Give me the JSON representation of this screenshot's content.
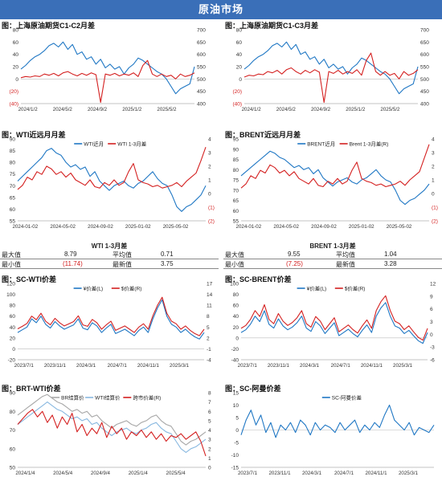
{
  "page": {
    "banner": "原油市场"
  },
  "chart_data": [
    {
      "id": "p1",
      "type": "line",
      "title": "图：上海原油期货C1-C2月差",
      "x_ticks": [
        "2024/1/2",
        "2024/5/2",
        "2024/9/2",
        "2025/1/2",
        "2025/5/2"
      ],
      "y_left_ticks": [
        "80",
        "60",
        "40",
        "20",
        "0",
        "(20)",
        "(40)"
      ],
      "y_left_range": [
        -40,
        80
      ],
      "y_right_ticks": [
        "700",
        "650",
        "600",
        "550",
        "500",
        "450",
        "400"
      ],
      "y_right_range": [
        400,
        700
      ],
      "series": [
        {
          "axis": "right",
          "color": "#1f77c4",
          "values": [
            540,
            555,
            575,
            590,
            600,
            615,
            635,
            645,
            630,
            650,
            620,
            640,
            600,
            610,
            580,
            590,
            560,
            580,
            545,
            560,
            540,
            550,
            520,
            545,
            560,
            585,
            575,
            560,
            545,
            530,
            520,
            500,
            470,
            440,
            460,
            470,
            480,
            550
          ]
        },
        {
          "axis": "left",
          "color": "#d42020",
          "values": [
            2,
            4,
            3,
            5,
            4,
            8,
            6,
            9,
            5,
            10,
            12,
            8,
            5,
            9,
            6,
            10,
            7,
            -38,
            8,
            6,
            9,
            5,
            8,
            6,
            10,
            4,
            22,
            30,
            8,
            4,
            8,
            4,
            6,
            0,
            8,
            4,
            6,
            10
          ]
        }
      ]
    },
    {
      "id": "p2",
      "type": "line",
      "title": "图：上海原油期货C1-C3月差",
      "x_ticks": [
        "2024/1/2",
        "2024/5/2",
        "2024/9/2",
        "2025/1/2",
        "2025/5/2"
      ],
      "y_left_ticks": [
        "80",
        "60",
        "40",
        "20",
        "0",
        "(20)",
        "(40)"
      ],
      "y_left_range": [
        -40,
        80
      ],
      "y_right_ticks": [
        "700",
        "650",
        "600",
        "550",
        "500",
        "450",
        "400"
      ],
      "y_right_range": [
        400,
        700
      ],
      "series": [
        {
          "axis": "right",
          "color": "#1f77c4",
          "values": [
            540,
            555,
            575,
            590,
            600,
            615,
            635,
            645,
            630,
            650,
            620,
            640,
            600,
            610,
            580,
            590,
            560,
            580,
            545,
            560,
            540,
            550,
            520,
            545,
            560,
            585,
            575,
            560,
            545,
            530,
            520,
            500,
            470,
            440,
            460,
            470,
            480,
            550
          ]
        },
        {
          "axis": "left",
          "color": "#d42020",
          "values": [
            3,
            6,
            5,
            8,
            7,
            12,
            10,
            14,
            8,
            15,
            18,
            12,
            8,
            14,
            10,
            15,
            11,
            -38,
            12,
            9,
            14,
            8,
            12,
            9,
            15,
            6,
            30,
            42,
            12,
            6,
            12,
            6,
            9,
            0,
            12,
            6,
            9,
            15
          ]
        }
      ]
    },
    {
      "id": "p3",
      "type": "line",
      "title": "图：WTI近远月月差",
      "x_ticks": [
        "2024-01-02",
        "2024-05-02",
        "2024-09-02",
        "2025-01-02",
        "2025-05-02"
      ],
      "y_left_ticks": [
        "90",
        "85",
        "80",
        "75",
        "70",
        "65",
        "60",
        "55"
      ],
      "y_left_range": [
        55,
        90
      ],
      "y_right_ticks": [
        "4",
        "3",
        "2",
        "1",
        "0",
        "(1)",
        "(2)"
      ],
      "y_right_range": [
        -2,
        4
      ],
      "legend": [
        "WTI近月",
        "WTI 1-3月差"
      ],
      "series": [
        {
          "name": "WTI近月",
          "axis": "left",
          "color": "#1f77c4",
          "values": [
            72,
            74,
            76,
            78,
            80,
            82,
            85,
            86,
            84,
            83,
            80,
            78,
            79,
            77,
            78,
            74,
            76,
            72,
            70,
            68,
            70,
            71,
            72,
            70,
            69,
            71,
            72,
            74,
            76,
            73,
            71,
            70,
            66,
            61,
            59,
            61,
            62,
            64,
            66,
            70
          ]
        },
        {
          "name": "WTI 1-3月差",
          "axis": "right",
          "color": "#d42020",
          "values": [
            0.3,
            0.6,
            1.2,
            1.0,
            1.6,
            1.4,
            2.0,
            1.8,
            1.4,
            1.6,
            1.2,
            1.5,
            1.0,
            0.8,
            0.6,
            1.0,
            0.5,
            0.4,
            0.8,
            0.6,
            1.0,
            0.6,
            0.8,
            1.6,
            2.2,
            1.0,
            0.8,
            0.7,
            0.5,
            0.6,
            0.4,
            0.5,
            0.6,
            0.8,
            0.5,
            0.9,
            1.2,
            1.5,
            2.4,
            3.4
          ]
        }
      ]
    },
    {
      "id": "p4",
      "type": "line",
      "title": "图：BRENT近远月月差",
      "x_ticks": [
        "2024-01-02",
        "2024-05-02",
        "2024-09-02",
        "2025-01-02",
        "2025-05-02"
      ],
      "y_left_ticks": [
        "95",
        "90",
        "85",
        "80",
        "75",
        "70",
        "65",
        "60",
        "55"
      ],
      "y_left_range": [
        55,
        95
      ],
      "y_right_ticks": [
        "4",
        "3",
        "2",
        "1",
        "0",
        "(1)",
        "(2)"
      ],
      "y_right_range": [
        -2,
        4
      ],
      "legend": [
        "BRENT近月",
        "Brent 1-3月差(R)"
      ],
      "series": [
        {
          "name": "BRENT近月",
          "axis": "left",
          "color": "#1f77c4",
          "values": [
            77,
            79,
            81,
            83,
            85,
            87,
            89,
            88,
            86,
            85,
            83,
            81,
            82,
            80,
            81,
            78,
            80,
            76,
            74,
            72,
            74,
            75,
            76,
            74,
            73,
            75,
            76,
            78,
            80,
            77,
            75,
            74,
            70,
            65,
            63,
            65,
            66,
            68,
            70,
            73
          ]
        },
        {
          "name": "Brent 1-3月差(R)",
          "axis": "right",
          "color": "#d42020",
          "values": [
            0.4,
            0.7,
            1.3,
            1.1,
            1.7,
            1.5,
            2.1,
            1.9,
            1.5,
            1.7,
            1.3,
            1.6,
            1.1,
            0.9,
            0.7,
            1.1,
            0.6,
            0.5,
            0.9,
            0.7,
            1.1,
            0.7,
            0.9,
            1.7,
            2.3,
            1.1,
            0.9,
            0.8,
            0.6,
            0.7,
            0.5,
            0.6,
            0.7,
            0.9,
            0.6,
            1.0,
            1.3,
            1.6,
            2.6,
            3.6
          ]
        }
      ]
    },
    {
      "id": "p5",
      "type": "line",
      "title": "图：SC-WTI价差",
      "x_ticks": [
        "2023/7/1",
        "2023/11/1",
        "2024/3/1",
        "2024/7/1",
        "2024/11/1",
        "2025/3/1"
      ],
      "y_left_ticks": [
        "120",
        "100",
        "80",
        "60",
        "40",
        "20",
        "0",
        "-20"
      ],
      "y_left_range": [
        -20,
        120
      ],
      "y_right_ticks": [
        "17",
        "14",
        "11",
        "8",
        "5",
        "2",
        "-1",
        "-4"
      ],
      "y_right_range": [
        -4,
        17
      ],
      "legend": [
        "¥价差(L)",
        "$价差(R)"
      ],
      "series": [
        {
          "name": "¥价差(L)",
          "axis": "left",
          "color": "#1f77c4",
          "values": [
            30,
            35,
            40,
            55,
            48,
            60,
            45,
            38,
            50,
            42,
            36,
            40,
            44,
            55,
            38,
            35,
            48,
            42,
            30,
            38,
            45,
            28,
            32,
            36,
            30,
            24,
            34,
            40,
            30,
            55,
            75,
            90,
            60,
            45,
            40,
            30,
            36,
            28,
            22,
            18,
            30
          ]
        },
        {
          "name": "$价差(R)",
          "axis": "right",
          "color": "#d42020",
          "values": [
            4.5,
            5.2,
            6.0,
            8.0,
            7.0,
            8.8,
            6.6,
            5.6,
            7.4,
            6.2,
            5.3,
            5.9,
            6.5,
            8.1,
            5.6,
            5.2,
            7.1,
            6.2,
            4.4,
            5.6,
            6.6,
            4.1,
            4.7,
            5.3,
            4.4,
            3.5,
            5.0,
            5.9,
            4.4,
            8.1,
            11.0,
            13.2,
            8.8,
            6.6,
            5.9,
            4.4,
            5.3,
            4.1,
            3.2,
            2.6,
            4.4
          ]
        }
      ]
    },
    {
      "id": "p6",
      "type": "line",
      "title": "图：SC-BRENT价差",
      "x_ticks": [
        "2023/7/1",
        "2023/11/1",
        "2024/3/1",
        "2024/7/1",
        "2024/11/1",
        "2025/3/1"
      ],
      "y_left_ticks": [
        "100",
        "80",
        "60",
        "40",
        "20",
        "0",
        "-20",
        "-40"
      ],
      "y_left_range": [
        -40,
        100
      ],
      "y_right_ticks": [
        "12",
        "9",
        "6",
        "3",
        "0",
        "-3",
        "-6"
      ],
      "y_right_range": [
        -6,
        12
      ],
      "legend": [
        "¥价差(L)",
        "$价差(R)"
      ],
      "series": [
        {
          "name": "¥价差(L)",
          "axis": "left",
          "color": "#1f77c4",
          "values": [
            10,
            15,
            25,
            40,
            30,
            50,
            25,
            18,
            35,
            22,
            15,
            20,
            28,
            40,
            18,
            12,
            30,
            22,
            8,
            18,
            28,
            4,
            10,
            16,
            8,
            2,
            14,
            24,
            10,
            40,
            55,
            65,
            40,
            22,
            18,
            8,
            14,
            4,
            -5,
            -10,
            10
          ]
        },
        {
          "name": "$价差(R)",
          "axis": "right",
          "color": "#d42020",
          "values": [
            1.4,
            2.1,
            3.5,
            5.6,
            4.2,
            7.0,
            3.5,
            2.5,
            4.9,
            3.1,
            2.1,
            2.8,
            3.9,
            5.6,
            2.5,
            1.7,
            4.2,
            3.1,
            1.1,
            2.5,
            3.9,
            0.6,
            1.4,
            2.2,
            1.1,
            0.3,
            2.0,
            3.4,
            1.4,
            5.6,
            7.7,
            9.1,
            5.6,
            3.1,
            2.5,
            1.1,
            2.0,
            0.6,
            -0.7,
            -1.4,
            1.4
          ]
        }
      ]
    },
    {
      "id": "p7",
      "type": "line",
      "title": "图：BRT-WTI价差",
      "x_ticks": [
        "2024/1/4",
        "2024/5/4",
        "2024/9/4",
        "2025/1/4",
        "2025/5/4"
      ],
      "y_left_ticks": [
        "90",
        "80",
        "70",
        "60",
        "50"
      ],
      "y_left_range": [
        50,
        90
      ],
      "y_right_ticks": [
        "8",
        "7",
        "6",
        "5",
        "4",
        "3",
        "2",
        "1",
        "0"
      ],
      "y_right_range": [
        0,
        8
      ],
      "legend": [
        "BR结算价",
        "WTI结算价",
        "跨市价差(R)"
      ],
      "series": [
        {
          "name": "BR结算价",
          "axis": "left",
          "color": "#a8a8a8",
          "values": [
            78,
            80,
            82,
            84,
            86,
            88,
            89,
            87,
            85,
            84,
            82,
            80,
            81,
            79,
            80,
            77,
            78,
            75,
            73,
            71,
            73,
            74,
            75,
            73,
            72,
            74,
            75,
            77,
            78,
            75,
            73,
            72,
            68,
            64,
            62,
            64,
            65,
            67,
            69
          ]
        },
        {
          "name": "WTI结算价",
          "axis": "left",
          "color": "#88b8e0",
          "values": [
            73,
            75,
            77,
            79,
            81,
            83,
            85,
            83,
            81,
            80,
            78,
            76,
            77,
            75,
            76,
            73,
            74,
            71,
            69,
            67,
            69,
            70,
            71,
            69,
            68,
            70,
            71,
            73,
            74,
            71,
            69,
            68,
            64,
            60,
            58,
            60,
            61,
            63,
            65
          ]
        },
        {
          "name": "跨市价差(R)",
          "axis": "right",
          "color": "#d42020",
          "values": [
            4.6,
            5.2,
            5.8,
            6.2,
            5.4,
            6.0,
            4.8,
            5.6,
            4.2,
            5.4,
            4.6,
            5.8,
            3.8,
            4.6,
            3.4,
            4.2,
            3.6,
            4.8,
            3.2,
            4.4,
            3.6,
            4.2,
            3.0,
            3.8,
            3.4,
            4.0,
            3.2,
            3.8,
            3.0,
            3.6,
            2.8,
            3.4,
            3.2,
            3.6,
            3.0,
            3.4,
            3.8,
            2.8,
            1.2
          ]
        }
      ]
    },
    {
      "id": "p8",
      "type": "line",
      "title": "图：SC-阿曼价差",
      "x_ticks": [
        "2023/7/1",
        "2023/11/1",
        "2024/3/1",
        "2024/7/1",
        "2024/11/1",
        "2025/3/1"
      ],
      "y_left_ticks": [
        "15",
        "10",
        "5",
        "0",
        "-5",
        "-10",
        "-15"
      ],
      "y_left_range": [
        -15,
        15
      ],
      "legend": [
        "SC-阿曼价差"
      ],
      "series": [
        {
          "name": "SC-阿曼价差",
          "axis": "left",
          "color": "#1f77c4",
          "values": [
            -2,
            4,
            8,
            2,
            6,
            -1,
            3,
            -3,
            2,
            0,
            3,
            -1,
            4,
            2,
            -2,
            3,
            0,
            2,
            1,
            -1,
            3,
            0,
            2,
            4,
            -1,
            2,
            0,
            3,
            1,
            6,
            10,
            4,
            2,
            0,
            3,
            -2,
            1,
            0,
            -1,
            2
          ]
        }
      ]
    }
  ],
  "stats_tables": [
    {
      "title": "WTI 1-3月差",
      "max_label": "最大值",
      "max": "8.79",
      "avg_label": "平均值",
      "avg": "0.71",
      "min_label": "最小值",
      "min": "(11.74)",
      "latest_label": "最新值",
      "latest": "3.75"
    },
    {
      "title": "BRENT 1-3月差",
      "max_label": "最大值",
      "max": "9.55",
      "avg_label": "平均值",
      "avg": "1.04",
      "min_label": "最小值",
      "min": "(7.25)",
      "latest_label": "最新值",
      "latest": "3.28"
    }
  ]
}
